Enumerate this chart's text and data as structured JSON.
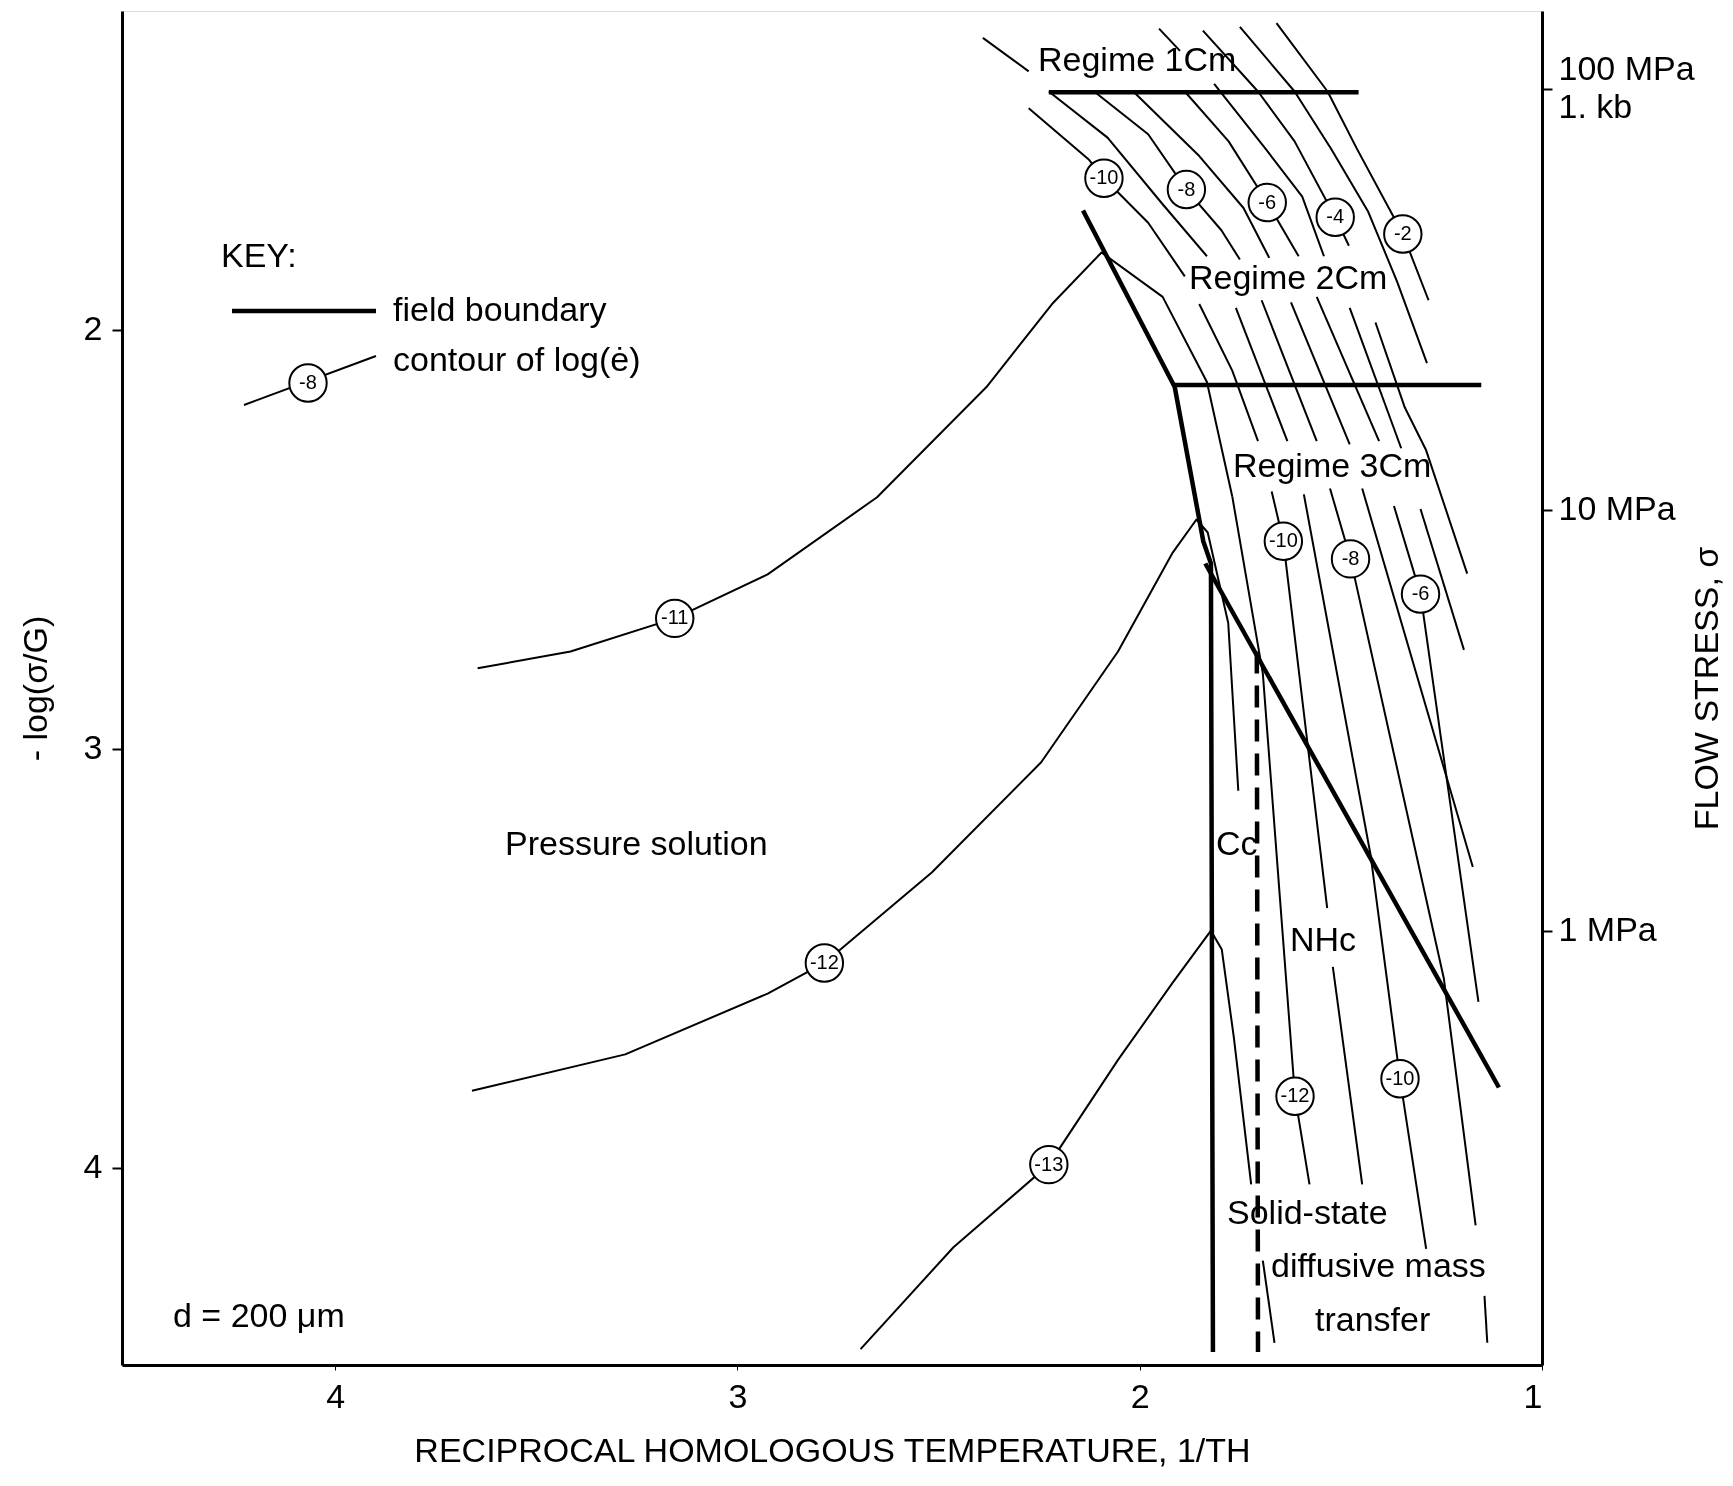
{
  "chart_data": {
    "type": "line",
    "xlabel": "RECIPROCAL HOMOLOGOUS TEMPERATURE, 1/TH",
    "ylabel": "- log(σ/G)",
    "y2label": "FLOW STRESS, σ",
    "legend_title": "KEY:",
    "legend": "top left",
    "grid": false,
    "log": "y2",
    "xlim": [
      4.53,
      1.0
    ],
    "xticks": [
      4,
      3,
      2,
      1
    ],
    "ylim": [
      4.47,
      1.24
    ],
    "yticks": [
      2,
      3,
      4
    ],
    "y2lim": [
      0.093,
      153
    ],
    "y2ticks": [
      {
        "value": 1,
        "label": "1 MPa"
      },
      {
        "value": 10,
        "label": "10 MPa"
      },
      {
        "value": 100,
        "label": "100 MPa\n1. kb"
      }
    ],
    "series": [
      {
        "name": "field boundary",
        "color": "#000000",
        "x": [
          2.226,
          1.456
        ],
        "values": [
          1.434,
          1.434
        ]
      },
      {
        "color": "#000000",
        "x": [
          1.913,
          1.151
        ],
        "values": [
          2.132,
          2.132
        ]
      },
      {
        "color": "#000000",
        "x": [
          2.141,
          1.913,
          1.842,
          1.823,
          1.818
        ],
        "values": [
          1.716,
          2.137,
          2.505,
          2.558,
          4.439
        ]
      },
      {
        "color": "#000000",
        "x": [
          1.837,
          1.107
        ],
        "values": [
          2.558,
          3.808
        ]
      },
      {
        "color": "#000000",
        "line_style": "dashed",
        "x": [
          1.709,
          1.706
        ],
        "values": [
          2.768,
          4.439
        ]
      },
      {
        "name": "contour of log(ė)",
        "color": "#000000",
        "x": [
          3.646,
          3.415,
          3.156,
          2.925,
          2.653,
          2.381,
          2.218,
          2.095,
          1.943,
          1.833,
          1.77
        ],
        "values": [
          2.808,
          2.768,
          2.689,
          2.584,
          2.4,
          2.137,
          1.939,
          1.816,
          1.922,
          2.125,
          2.398
        ]
      },
      {
        "color": "#000000",
        "x": [
          1.77,
          1.694,
          1.614,
          1.578
        ],
        "values": [
          2.398,
          2.82,
          3.829,
          4.039
        ]
      },
      {
        "color": "#000000",
        "x": [
          3.66,
          3.279,
          2.925,
          2.784,
          2.517,
          2.245,
          2.054,
          1.918,
          1.859,
          1.831,
          1.78,
          1.755
        ],
        "values": [
          3.816,
          3.729,
          3.584,
          3.511,
          3.295,
          3.032,
          2.768,
          2.532,
          2.453,
          2.484,
          2.7,
          3.1
        ]
      },
      {
        "color": "#000000",
        "x": [
          2.694,
          2.463,
          2.226,
          2.054,
          1.918,
          1.823,
          1.796,
          1.766,
          1.723
        ],
        "values": [
          4.432,
          4.189,
          3.992,
          3.742,
          3.558,
          3.434,
          3.479,
          3.689,
          4.039
        ]
      },
      {
        "color": "#000000",
        "x": [
          2.276,
          2.126,
          2.089,
          1.979,
          1.888
        ],
        "values": [
          1.472,
          1.595,
          1.639,
          1.745,
          1.873
        ]
      },
      {
        "color": "#000000",
        "x": [
          2.39,
          2.276
        ],
        "values": [
          1.304,
          1.384
        ]
      },
      {
        "color": "#000000",
        "x": [
          2.226,
          2.08,
          1.943,
          1.833
        ],
        "values": [
          1.432,
          1.542,
          1.701,
          1.825
        ]
      },
      {
        "color": "#000000",
        "x": [
          2.107,
          1.979,
          1.884,
          1.797,
          1.751
        ],
        "values": [
          1.437,
          1.534,
          1.666,
          1.763,
          1.833
        ]
      },
      {
        "color": "#000000",
        "x": [
          2.016,
          1.852,
          1.742,
          1.678
        ],
        "values": [
          1.432,
          1.586,
          1.71,
          1.829
        ]
      },
      {
        "color": "#000000",
        "x": [
          1.888,
          1.779,
          1.683,
          1.605
        ],
        "values": [
          1.432,
          1.551,
          1.697,
          1.825
        ]
      },
      {
        "color": "#000000",
        "x": [
          1.952,
          1.9
        ],
        "values": [
          1.282,
          1.335
        ]
      },
      {
        "color": "#000000",
        "x": [
          1.815,
          1.687,
          1.596,
          1.542
        ],
        "values": [
          1.414,
          1.569,
          1.683,
          1.825
        ]
      },
      {
        "color": "#000000",
        "x": [
          1.843,
          1.706,
          1.615,
          1.514,
          1.48
        ],
        "values": [
          1.287,
          1.432,
          1.551,
          1.732,
          1.8
        ]
      },
      {
        "color": "#000000",
        "x": [
          1.751,
          1.615,
          1.524,
          1.432,
          1.36,
          1.286
        ],
        "values": [
          1.278,
          1.432,
          1.569,
          1.719,
          1.886,
          2.08
        ]
      },
      {
        "color": "#000000",
        "x": [
          1.66,
          1.533,
          1.46,
          1.346,
          1.282
        ],
        "values": [
          1.269,
          1.432,
          1.569,
          1.772,
          1.93
        ]
      },
      {
        "color": "#000000",
        "x": [
          1.852,
          1.77,
          1.706
        ],
        "values": [
          1.939,
          2.098,
          2.266
        ]
      },
      {
        "color": "#000000",
        "x": [
          1.761,
          1.633
        ],
        "values": [
          1.948,
          2.266
        ]
      },
      {
        "color": "#000000",
        "x": [
          1.697,
          1.56
        ],
        "values": [
          1.93,
          2.266
        ]
      },
      {
        "color": "#000000",
        "x": [
          1.624,
          1.478
        ],
        "values": [
          1.935,
          2.274
        ]
      },
      {
        "color": "#000000",
        "x": [
          1.56,
          1.405
        ],
        "values": [
          1.922,
          2.266
        ]
      },
      {
        "color": "#000000",
        "x": [
          1.478,
          1.35
        ],
        "values": [
          1.948,
          2.283
        ]
      },
      {
        "color": "#000000",
        "x": [
          1.414,
          1.341,
          1.288,
          1.186
        ],
        "values": [
          1.983,
          2.186,
          2.288,
          2.582
        ]
      },
      {
        "color": "#000000",
        "x": [
          1.672,
          1.643,
          1.534
        ],
        "values": [
          2.386,
          2.505,
          3.38
        ]
      },
      {
        "color": "#000000",
        "x": [
          1.52,
          1.447
        ],
        "values": [
          3.52,
          4.039
        ]
      },
      {
        "color": "#000000",
        "x": [
          1.592,
          1.426,
          1.353,
          1.288
        ],
        "values": [
          2.393,
          3.254,
          3.787,
          4.193
        ]
      },
      {
        "color": "#000000",
        "x": [
          1.527,
          1.476,
          1.244,
          1.165
        ],
        "values": [
          2.379,
          2.547,
          3.548,
          4.137
        ]
      },
      {
        "color": "#000000",
        "x": [
          1.447,
          1.172
        ],
        "values": [
          2.379,
          3.282
        ]
      },
      {
        "color": "#000000",
        "x": [
          1.368,
          1.302,
          1.158
        ],
        "values": [
          2.421,
          2.631,
          3.604
        ]
      },
      {
        "color": "#000000",
        "x": [
          1.302,
          1.194
        ],
        "values": [
          2.428,
          2.764
        ]
      },
      {
        "color": "#000000",
        "x": [
          1.694,
          1.665
        ],
        "values": [
          4.221,
          4.417
        ]
      },
      {
        "color": "#000000",
        "x": [
          1.143,
          1.136
        ],
        "values": [
          4.305,
          4.417
        ]
      }
    ],
    "annotations": [
      "-8",
      "Regime 1Cm",
      "Regime 2Cm",
      "Regime 3Cm",
      "Pressure solution",
      "Cc",
      "NHc",
      "Solid-state",
      "diffusive mass",
      "transfer",
      "d = 200 μm",
      {
        "text": "-10",
        "x": 2.089,
        "y": 1.639
      },
      {
        "text": "-8",
        "x": 1.884,
        "y": 1.666
      },
      {
        "text": "-6",
        "x": 1.683,
        "y": 1.697
      },
      {
        "text": "-4",
        "x": 1.514,
        "y": 1.732
      },
      {
        "text": "-2",
        "x": 1.346,
        "y": 1.772
      },
      {
        "text": "-10",
        "x": 1.643,
        "y": 2.505
      },
      {
        "text": "-8",
        "x": 1.476,
        "y": 2.547
      },
      {
        "text": "-6",
        "x": 1.302,
        "y": 2.631
      },
      {
        "text": "-12",
        "x": 1.614,
        "y": 3.829
      },
      {
        "text": "-10",
        "x": 1.353,
        "y": 3.787
      },
      {
        "text": "-11",
        "x": 3.156,
        "y": 2.689
      },
      {
        "text": "-12",
        "x": 2.784,
        "y": 3.511
      },
      {
        "text": "-13",
        "x": 2.226,
        "y": 3.992
      }
    ]
  }
}
